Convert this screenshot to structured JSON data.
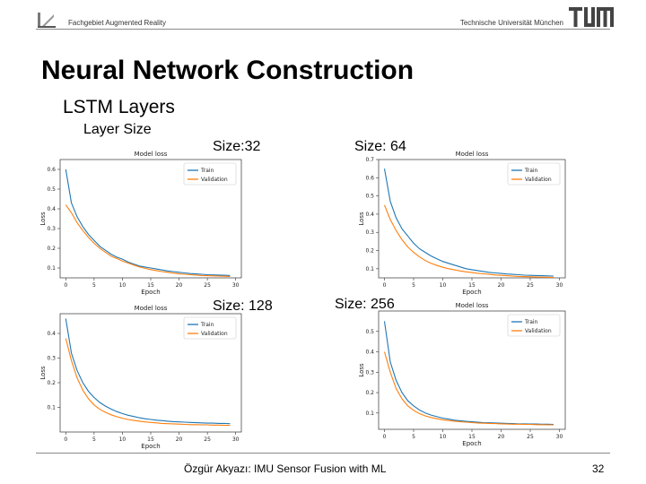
{
  "header": {
    "left_text": "Fachgebiet Augmented Reality",
    "right_text": "Technische Universität München",
    "logo_icon": "chair-logo-icon",
    "tum_logo_icon": "tum-logo-icon"
  },
  "slide": {
    "title": "Neural Network Construction",
    "subtitle": "LSTM Layers",
    "subsubtitle": "Layer Size"
  },
  "footer": {
    "text": "Özgür Akyazı: IMU Sensor Fusion with ML",
    "page": "32"
  },
  "colors": {
    "train": "#1f77b4",
    "validation": "#ff7f0e",
    "rule": "#8a8a8a"
  },
  "chart_data": [
    {
      "type": "line",
      "size_label": "Size:32",
      "title": "Model loss",
      "xlabel": "Epoch",
      "ylabel": "Loss",
      "xlim": [
        -1,
        31
      ],
      "ylim": [
        0.05,
        0.65
      ],
      "xticks": [
        0,
        5,
        10,
        15,
        20,
        25,
        30
      ],
      "yticks": [
        0.1,
        0.2,
        0.3,
        0.4,
        0.5,
        0.6
      ],
      "ytick_labels": [
        "0.1",
        "0.2",
        "0.3",
        "0.4",
        "0.5",
        "0.6"
      ],
      "legend": "top-right",
      "series": [
        {
          "name": "Train",
          "values": [
            0.6,
            0.43,
            0.36,
            0.31,
            0.27,
            0.24,
            0.21,
            0.19,
            0.17,
            0.155,
            0.145,
            0.13,
            0.12,
            0.11,
            0.105,
            0.1,
            0.095,
            0.09,
            0.085,
            0.082,
            0.078,
            0.075,
            0.072,
            0.07,
            0.068,
            0.066,
            0.065,
            0.064,
            0.063,
            0.062
          ]
        },
        {
          "name": "Validation",
          "values": [
            0.42,
            0.38,
            0.33,
            0.29,
            0.255,
            0.225,
            0.2,
            0.18,
            0.16,
            0.148,
            0.135,
            0.125,
            0.115,
            0.105,
            0.098,
            0.092,
            0.087,
            0.082,
            0.078,
            0.074,
            0.07,
            0.068,
            0.066,
            0.064,
            0.062,
            0.061,
            0.06,
            0.059,
            0.058,
            0.057
          ]
        }
      ]
    },
    {
      "type": "line",
      "size_label": "Size: 64",
      "title": "Model loss",
      "xlabel": "Epoch",
      "ylabel": "Loss",
      "xlim": [
        -1,
        31
      ],
      "ylim": [
        0.05,
        0.7
      ],
      "xticks": [
        0,
        5,
        10,
        15,
        20,
        25,
        30
      ],
      "yticks": [
        0.1,
        0.2,
        0.3,
        0.4,
        0.5,
        0.6,
        0.7
      ],
      "ytick_labels": [
        "0.1",
        "0.2",
        "0.3",
        "0.4",
        "0.5",
        "0.6",
        "0.7"
      ],
      "legend": "top-right",
      "series": [
        {
          "name": "Train",
          "values": [
            0.65,
            0.47,
            0.38,
            0.32,
            0.28,
            0.24,
            0.21,
            0.19,
            0.17,
            0.155,
            0.14,
            0.13,
            0.12,
            0.11,
            0.1,
            0.095,
            0.09,
            0.085,
            0.08,
            0.077,
            0.074,
            0.071,
            0.069,
            0.067,
            0.065,
            0.064,
            0.063,
            0.062,
            0.061,
            0.06
          ]
        },
        {
          "name": "Validation",
          "values": [
            0.45,
            0.37,
            0.31,
            0.26,
            0.22,
            0.19,
            0.165,
            0.145,
            0.13,
            0.118,
            0.108,
            0.1,
            0.094,
            0.088,
            0.083,
            0.079,
            0.075,
            0.072,
            0.069,
            0.066,
            0.064,
            0.062,
            0.06,
            0.058,
            0.057,
            0.056,
            0.055,
            0.054,
            0.053,
            0.052
          ]
        }
      ]
    },
    {
      "type": "line",
      "size_label": "Size: 128",
      "title": "Model loss",
      "xlabel": "Epoch",
      "ylabel": "Loss",
      "xlim": [
        -1,
        31
      ],
      "ylim": [
        0.0,
        0.48
      ],
      "xticks": [
        0,
        5,
        10,
        15,
        20,
        25,
        30
      ],
      "yticks": [
        0.1,
        0.2,
        0.3,
        0.4
      ],
      "ytick_labels": [
        "0.1",
        "0.2",
        "0.3",
        "0.4"
      ],
      "legend": "top-right",
      "series": [
        {
          "name": "Train",
          "values": [
            0.46,
            0.32,
            0.25,
            0.2,
            0.165,
            0.14,
            0.12,
            0.105,
            0.093,
            0.083,
            0.075,
            0.068,
            0.063,
            0.058,
            0.054,
            0.051,
            0.048,
            0.046,
            0.044,
            0.042,
            0.041,
            0.04,
            0.039,
            0.038,
            0.037,
            0.036,
            0.036,
            0.035,
            0.035,
            0.034
          ]
        },
        {
          "name": "Validation",
          "values": [
            0.38,
            0.29,
            0.22,
            0.17,
            0.135,
            0.11,
            0.092,
            0.08,
            0.07,
            0.062,
            0.056,
            0.051,
            0.047,
            0.044,
            0.041,
            0.039,
            0.037,
            0.035,
            0.034,
            0.033,
            0.032,
            0.031,
            0.03,
            0.03,
            0.029,
            0.029,
            0.028,
            0.028,
            0.027,
            0.027
          ]
        }
      ]
    },
    {
      "type": "line",
      "size_label": "Size: 256",
      "title": "Model loss",
      "xlabel": "Epoch",
      "ylabel": "Loss",
      "xlim": [
        -1,
        31
      ],
      "ylim": [
        0.02,
        0.6
      ],
      "xticks": [
        0,
        5,
        10,
        15,
        20,
        25,
        30
      ],
      "yticks": [
        0.1,
        0.2,
        0.3,
        0.4,
        0.5
      ],
      "ytick_labels": [
        "0.1",
        "0.2",
        "0.3",
        "0.4",
        "0.5"
      ],
      "legend": "top-right",
      "series": [
        {
          "name": "Train",
          "values": [
            0.55,
            0.35,
            0.26,
            0.2,
            0.16,
            0.135,
            0.115,
            0.1,
            0.09,
            0.082,
            0.075,
            0.07,
            0.065,
            0.062,
            0.059,
            0.057,
            0.055,
            0.053,
            0.052,
            0.051,
            0.05,
            0.049,
            0.048,
            0.047,
            0.047,
            0.046,
            0.046,
            0.045,
            0.045,
            0.044
          ]
        },
        {
          "name": "Validation",
          "values": [
            0.4,
            0.3,
            0.22,
            0.17,
            0.135,
            0.113,
            0.097,
            0.086,
            0.078,
            0.072,
            0.067,
            0.063,
            0.06,
            0.057,
            0.055,
            0.053,
            0.051,
            0.05,
            0.049,
            0.048,
            0.047,
            0.046,
            0.045,
            0.045,
            0.044,
            0.044,
            0.043,
            0.043,
            0.042,
            0.042
          ]
        }
      ]
    }
  ]
}
